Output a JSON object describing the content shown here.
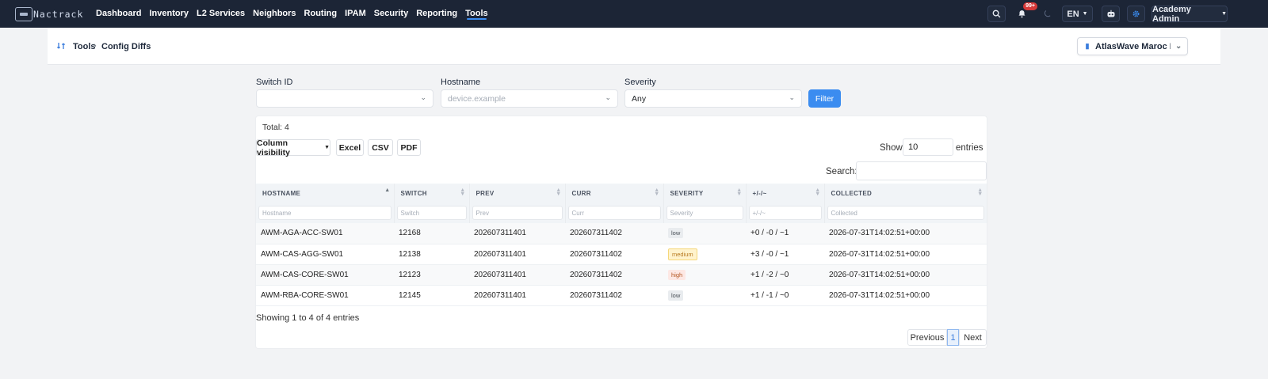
{
  "brand": {
    "name": "Nactrack",
    "logo_icon": "nactrack-logo-icon"
  },
  "nav": {
    "items": [
      {
        "label": "Dashboard",
        "active": false
      },
      {
        "label": "Inventory",
        "active": false
      },
      {
        "label": "L2 Services",
        "active": false
      },
      {
        "label": "Neighbors",
        "active": false
      },
      {
        "label": "Routing",
        "active": false
      },
      {
        "label": "IPAM",
        "active": false
      },
      {
        "label": "Security",
        "active": false
      },
      {
        "label": "Reporting",
        "active": false
      },
      {
        "label": "Tools",
        "active": true
      }
    ],
    "notifications_badge": "99+",
    "language": "EN",
    "user": "Academy Admin",
    "accent_color": "#3b8cf0",
    "navbar_color": "#1c2536"
  },
  "breadcrumb": {
    "items": [
      "Tools",
      "Config Diffs"
    ],
    "site": "AtlasWave Maroc Demo"
  },
  "filters": {
    "switch_label": "Switch ID",
    "switch_value": "",
    "hostname_label": "Hostname",
    "hostname_placeholder": "device.example",
    "severity_label": "Severity",
    "severity_value": "Any",
    "button": "Filter"
  },
  "table": {
    "total": "Total: 4",
    "buttons": {
      "colvis": "Column visibility",
      "excel": "Excel",
      "csv": "CSV",
      "pdf": "PDF"
    },
    "show_label": "Show",
    "show_value": "10",
    "entries_label": "entries",
    "search_label": "Search:",
    "columns": [
      "HOSTNAME",
      "SWITCH",
      "PREV",
      "CURR",
      "SEVERITY",
      "+/-/~",
      "COLLECTED"
    ],
    "column_filters": [
      "Hostname",
      "Switch",
      "Prev",
      "Curr",
      "Severity",
      "+/-/~",
      "Collected"
    ],
    "rows": [
      {
        "hostname": "AWM-AGA-ACC-SW01",
        "switch": "12168",
        "prev": "202607311401",
        "curr": "202607311402",
        "severity": "low",
        "diff": "+0 / -0 / ~1",
        "collected": "2026-07-31T14:02:51+00:00"
      },
      {
        "hostname": "AWM-CAS-AGG-SW01",
        "switch": "12138",
        "prev": "202607311401",
        "curr": "202607311402",
        "severity": "medium",
        "diff": "+3 / -0 / ~1",
        "collected": "2026-07-31T14:02:51+00:00"
      },
      {
        "hostname": "AWM-CAS-CORE-SW01",
        "switch": "12123",
        "prev": "202607311401",
        "curr": "202607311402",
        "severity": "high",
        "diff": "+1 / -2 / ~0",
        "collected": "2026-07-31T14:02:51+00:00"
      },
      {
        "hostname": "AWM-RBA-CORE-SW01",
        "switch": "12145",
        "prev": "202607311401",
        "curr": "202607311402",
        "severity": "low",
        "diff": "+1 / -1 / ~0",
        "collected": "2026-07-31T14:02:51+00:00"
      }
    ],
    "info": "Showing 1 to 4 of 4 entries",
    "pager": {
      "previous": "Previous",
      "current": "1",
      "next": "Next"
    }
  }
}
